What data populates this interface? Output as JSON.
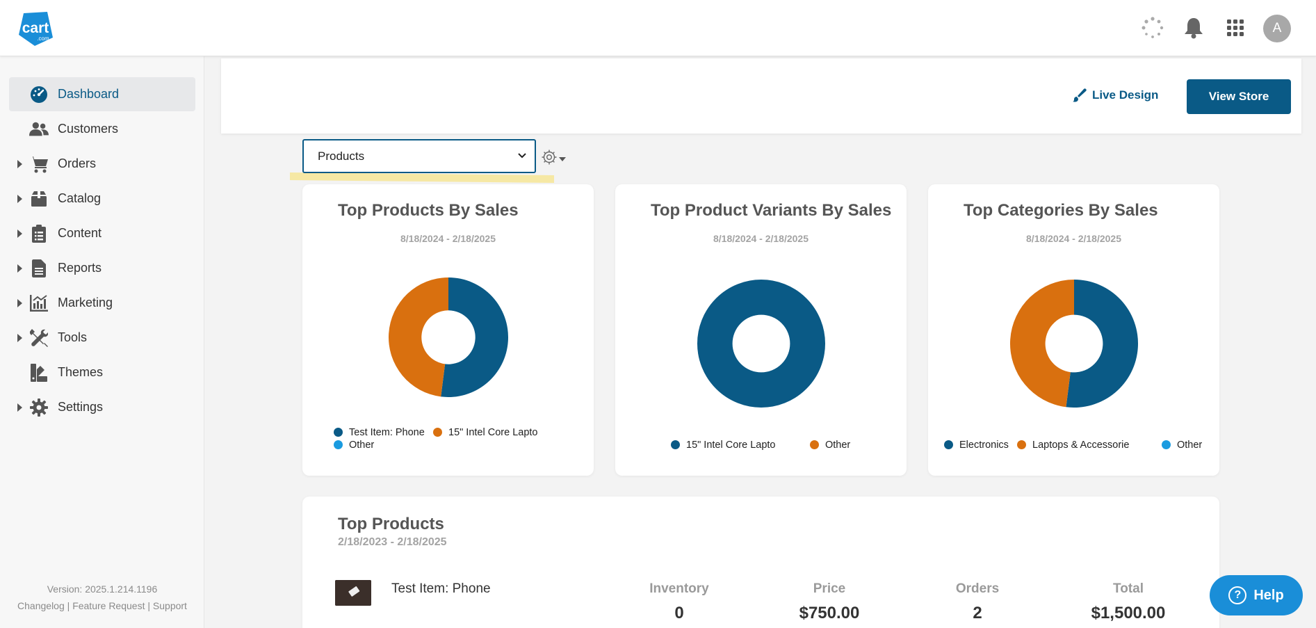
{
  "header": {
    "logo_text": "cart",
    "logo_suffix": ".com",
    "avatar_initial": "A"
  },
  "sidebar": {
    "items": [
      {
        "label": "Dashboard",
        "icon": "dashboard-icon",
        "expandable": false,
        "active": true
      },
      {
        "label": "Customers",
        "icon": "users-icon",
        "expandable": false,
        "active": false
      },
      {
        "label": "Orders",
        "icon": "cart-icon",
        "expandable": true,
        "active": false
      },
      {
        "label": "Catalog",
        "icon": "box-icon",
        "expandable": true,
        "active": false
      },
      {
        "label": "Content",
        "icon": "clipboard-icon",
        "expandable": true,
        "active": false
      },
      {
        "label": "Reports",
        "icon": "document-icon",
        "expandable": true,
        "active": false
      },
      {
        "label": "Marketing",
        "icon": "chart-icon",
        "expandable": true,
        "active": false
      },
      {
        "label": "Tools",
        "icon": "tools-icon",
        "expandable": true,
        "active": false
      },
      {
        "label": "Themes",
        "icon": "themes-icon",
        "expandable": false,
        "active": false
      },
      {
        "label": "Settings",
        "icon": "gear-icon",
        "expandable": true,
        "active": false
      }
    ],
    "version": "Version: 2025.1.214.1196",
    "footer_links": [
      "Changelog",
      "Feature Request",
      "Support"
    ]
  },
  "actions": {
    "live_design": "Live Design",
    "view_store": "View Store"
  },
  "report_select": {
    "selected": "Products"
  },
  "colors": {
    "primary": "#0a5a86",
    "orange": "#d9700f",
    "light_blue": "#1a9be0"
  },
  "cards": [
    {
      "title": "Top Products By Sales",
      "date_range": "8/18/2024 - 2/18/2025",
      "chart_data": {
        "type": "pie",
        "donut": true,
        "title": "Top Products By Sales",
        "labels": [
          "Test Item: Phone",
          "15\" Intel Core Lapto",
          "Other"
        ],
        "values": [
          52,
          48,
          0
        ],
        "colors": [
          "#0a5a86",
          "#d9700f",
          "#1a9be0"
        ],
        "legend": "bottom"
      }
    },
    {
      "title": "Top Product Variants By Sales",
      "date_range": "8/18/2024 - 2/18/2025",
      "chart_data": {
        "type": "pie",
        "donut": true,
        "title": "Top Product Variants By Sales",
        "labels": [
          "15\" Intel Core Lapto",
          "Other"
        ],
        "values": [
          100,
          0
        ],
        "colors": [
          "#0a5a86",
          "#d9700f"
        ],
        "legend": "bottom"
      }
    },
    {
      "title": "Top Categories By Sales",
      "date_range": "8/18/2024 - 2/18/2025",
      "chart_data": {
        "type": "pie",
        "donut": true,
        "title": "Top Categories By Sales",
        "labels": [
          "Electronics",
          "Laptops & Accessorie",
          "Other"
        ],
        "values": [
          52,
          48,
          0
        ],
        "colors": [
          "#0a5a86",
          "#d9700f",
          "#1a9be0"
        ],
        "legend": "bottom"
      }
    }
  ],
  "top_products": {
    "title": "Top Products",
    "date_range": "2/18/2023 - 2/18/2025",
    "columns": [
      "Inventory",
      "Price",
      "Orders",
      "Total"
    ],
    "rows": [
      {
        "name": "Test Item: Phone",
        "inventory": "0",
        "price": "$750.00",
        "orders": "2",
        "total": "$1,500.00"
      }
    ]
  },
  "help": {
    "label": "Help"
  }
}
